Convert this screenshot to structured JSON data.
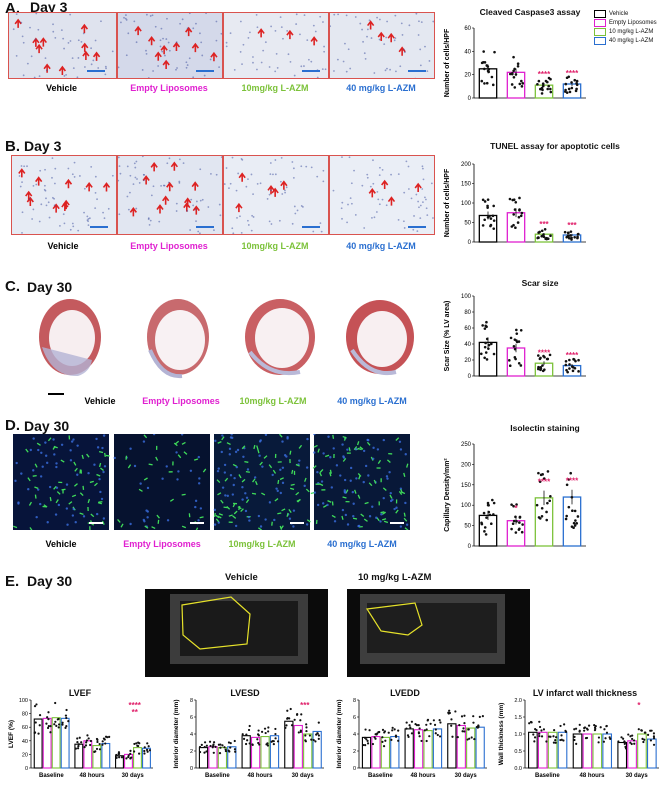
{
  "panels": {
    "A": {
      "letter": "A.",
      "day": "Day 3",
      "captions": [
        "Vehicle",
        "Empty Liposomes",
        "10mg/kg L-AZM",
        "40 mg/kg L-AZM"
      ],
      "chart_title": "Cleaved Caspase3 assay",
      "ylabel": "Number of cells/HPF"
    },
    "B": {
      "letter": "B.",
      "day": "Day 3",
      "captions": [
        "Vehicle",
        "Empty Liposomes",
        "10mg/kg L-AZM",
        "40 mg/kg L-AZM"
      ],
      "chart_title": "TUNEL assay for apoptotic cells",
      "ylabel": "Number of cells/HPF"
    },
    "C": {
      "letter": "C.",
      "day": "Day 30",
      "captions": [
        "Vehicle",
        "Empty Liposomes",
        "10mg/kg L-AZM",
        "40 mg/kg L-AZM"
      ],
      "chart_title": "Scar size",
      "ylabel": "Scar Size (% LV area)"
    },
    "D": {
      "letter": "D.",
      "day": "Day 30",
      "captions": [
        "Vehicle",
        "Empty Liposomes",
        "10mg/kg L-AZM",
        "40 mg/kg L-AZM"
      ],
      "chart_title": "Isolectin staining",
      "ylabel": "Capillary Density/mm²"
    },
    "E": {
      "letter": "E.",
      "day": "Day 30",
      "echo_labels": [
        "Vehicle",
        "10 mg/kg L-AZM"
      ]
    }
  },
  "legend": [
    "Vehicle",
    "Empty Liposomes",
    "10 mg/kg L-AZM",
    "40 mg/kg L-AZM"
  ],
  "colors": {
    "vehicle": "#000000",
    "empty": "#e020d0",
    "l10": "#7cc23a",
    "l40": "#2a6fd0",
    "sig": "#e0206a",
    "frame": "#d9534f"
  },
  "chart_data": [
    {
      "type": "bar",
      "title": "Cleaved Caspase3 assay",
      "ylabel": "Number of cells/HPF",
      "ylim": [
        0,
        60
      ],
      "yticks": [
        0,
        20,
        40,
        60
      ],
      "categories": [
        "Vehicle",
        "Empty Liposomes",
        "10 mg/kg L-AZM",
        "40 mg/kg L-AZM"
      ],
      "values": [
        25,
        22,
        11,
        12
      ],
      "sig": [
        "",
        "",
        "****",
        "****"
      ]
    },
    {
      "type": "bar",
      "title": "TUNEL assay for apoptotic cells",
      "ylabel": "Number of cells/HPF",
      "ylim": [
        0,
        200
      ],
      "yticks": [
        0,
        50,
        100,
        150,
        200
      ],
      "categories": [
        "Vehicle",
        "Empty Liposomes",
        "10 mg/kg L-AZM",
        "40 mg/kg L-AZM"
      ],
      "values": [
        68,
        75,
        20,
        18
      ],
      "sig": [
        "",
        "",
        "***",
        "***"
      ]
    },
    {
      "type": "bar",
      "title": "Scar size",
      "ylabel": "Scar Size (% LV area)",
      "ylim": [
        0,
        100
      ],
      "yticks": [
        0,
        20,
        40,
        60,
        80,
        100
      ],
      "categories": [
        "Vehicle",
        "Empty Liposomes",
        "10 mg/kg L-AZM",
        "40 mg/kg L-AZM"
      ],
      "values": [
        42,
        35,
        16,
        13
      ],
      "sig": [
        "",
        "",
        "****",
        "****"
      ]
    },
    {
      "type": "bar",
      "title": "Isolectin staining",
      "ylabel": "Capillary Density/mm²",
      "ylim": [
        0,
        250
      ],
      "yticks": [
        0,
        50,
        100,
        150,
        200,
        250
      ],
      "categories": [
        "Vehicle",
        "Empty Liposomes",
        "10 mg/kg L-AZM",
        "40 mg/kg L-AZM"
      ],
      "values": [
        75,
        62,
        118,
        120
      ],
      "sig": [
        "",
        "*",
        "****",
        "****"
      ]
    },
    {
      "type": "bar",
      "title": "LVEF",
      "ylabel": "LVEF (%)",
      "ylim": [
        0,
        100
      ],
      "yticks": [
        0,
        20,
        40,
        60,
        80,
        100
      ],
      "categories": [
        "Baseline",
        "48 hours",
        "30 days"
      ],
      "series": [
        {
          "values": [
            72,
            35,
            18
          ]
        },
        {
          "values": [
            73,
            40,
            20
          ]
        },
        {
          "values": [
            74,
            33,
            30
          ]
        },
        {
          "values": [
            73,
            36,
            29
          ]
        }
      ],
      "sig": [
        "****",
        "**"
      ]
    },
    {
      "type": "bar",
      "title": "LVESD",
      "ylabel": "Interior diameter (mm)",
      "ylim": [
        0,
        8
      ],
      "yticks": [
        0,
        2,
        4,
        6,
        8
      ],
      "categories": [
        "Baseline",
        "48 hours",
        "30 days"
      ],
      "series": [
        {
          "values": [
            2.4,
            3.8,
            5.5
          ]
        },
        {
          "values": [
            2.5,
            3.6,
            5.0
          ]
        },
        {
          "values": [
            2.4,
            3.7,
            4.0
          ]
        },
        {
          "values": [
            2.5,
            3.8,
            4.3
          ]
        }
      ],
      "sig": [
        "***"
      ]
    },
    {
      "type": "bar",
      "title": "LVEDD",
      "ylabel": "Interior diameter (mm)",
      "ylim": [
        0,
        8
      ],
      "yticks": [
        0,
        2,
        4,
        6,
        8
      ],
      "categories": [
        "Baseline",
        "48 hours",
        "30 days"
      ],
      "series": [
        {
          "values": [
            3.6,
            4.6,
            5.2
          ]
        },
        {
          "values": [
            3.7,
            4.5,
            5.0
          ]
        },
        {
          "values": [
            3.6,
            4.4,
            4.7
          ]
        },
        {
          "values": [
            3.7,
            4.6,
            4.8
          ]
        }
      ],
      "sig": []
    },
    {
      "type": "bar",
      "title": "LV infarct wall thickness",
      "ylabel": "Wall thickness (mm)",
      "ylim": [
        0,
        2.0
      ],
      "yticks": [
        0.0,
        0.5,
        1.0,
        1.5,
        2.0
      ],
      "categories": [
        "Baseline",
        "48 hours",
        "30 days"
      ],
      "series": [
        {
          "values": [
            1.05,
            1.0,
            0.75
          ]
        },
        {
          "values": [
            1.05,
            1.0,
            0.8
          ]
        },
        {
          "values": [
            1.05,
            1.0,
            1.0
          ]
        },
        {
          "values": [
            1.05,
            1.0,
            0.85
          ]
        }
      ],
      "sig": [
        "*"
      ]
    }
  ]
}
